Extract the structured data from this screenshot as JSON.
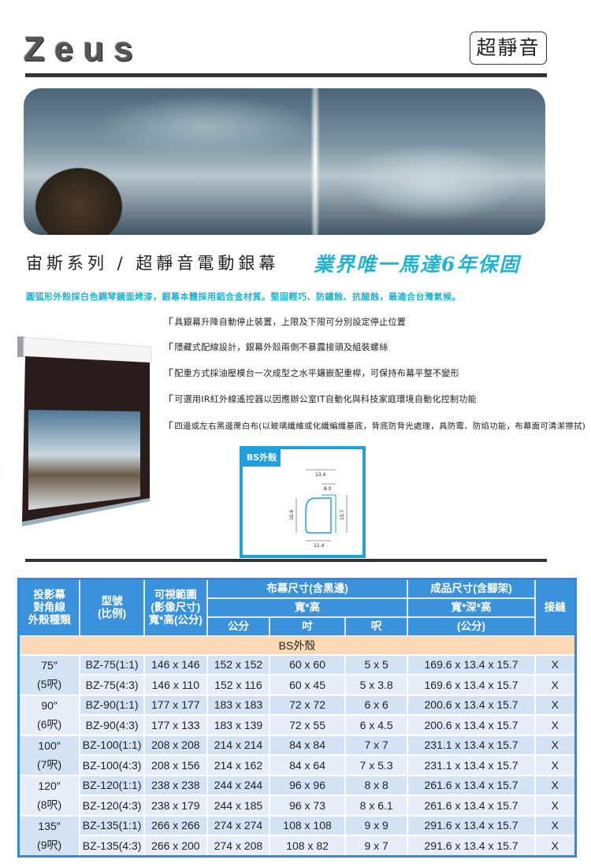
{
  "header": {
    "logo": "Zeus",
    "badge": "超靜音"
  },
  "title": {
    "series": "宙斯系列 / 超靜音電動銀幕",
    "warranty": "業界唯一馬達6年保固"
  },
  "description": "圓弧形外殼採白色鋼琴鏡面烤漆，銀幕本體採用鋁合金材質。堅固輕巧、防鏽蝕、抗酸蝕，最適合台灣氣候。",
  "features": [
    "具銀幕升降自動停止裝置，上限及下限可分別設定停止位置",
    "隱藏式配線設計，銀幕外殼兩側不暴露接頭及組裝螺絲",
    "配重方式採油壓模台一次成型之水平鑲嵌配重桿，可保持布幕平整不變形",
    "可選用IR紅外線遙控器以因應辦公室IT自動化與科技家庭環境自動化控制功能",
    "四邊或左右黑邊蓆白布(以玻璃纖維或化纖編織基底，背底防背光處理，具防霉、防焰功能，布幕面可清潔擦拭)"
  ],
  "diagram": {
    "label": "BS外殼",
    "dims": {
      "width_total": "13.4",
      "top": "8.0",
      "height_left": "10.6",
      "height_right": "15.7",
      "bottom": "11.4"
    }
  },
  "table": {
    "headers": {
      "diag": [
        "投影幕",
        "對角線",
        "外殼種類"
      ],
      "model": [
        "型號",
        "(比例)"
      ],
      "visible": [
        "可視範圍",
        "(影像尺寸)",
        "寬*高(公分)"
      ],
      "fabric": "布幕尺寸(含黑邊)",
      "fabric_sub": "寬*高",
      "fabric_units": [
        "公分",
        "吋",
        "呎"
      ],
      "product": "成品尺寸(含腳架)",
      "product_sub": "寬*深*高",
      "product_unit": "(公分)",
      "seam": "接縫"
    },
    "band": "BS外殼",
    "groups": [
      {
        "size": "75″",
        "feet": "(5呎)",
        "rows": [
          [
            "BZ-75(1:1)",
            "146 x 146",
            "152 x 152",
            "60 x 60",
            "5 x 5",
            "169.6 x 13.4 x 15.7",
            "X"
          ],
          [
            "BZ-75(4:3)",
            "146 x 110",
            "152 x 116",
            "60 x 45",
            "5 x 3.8",
            "169.6 x 13.4 x 15.7",
            "X"
          ]
        ]
      },
      {
        "size": "90″",
        "feet": "(6呎)",
        "rows": [
          [
            "BZ-90(1:1)",
            "177 x 177",
            "183 x 183",
            "72 x 72",
            "6 x 6",
            "200.6 x 13.4 x 15.7",
            "X"
          ],
          [
            "BZ-90(4:3)",
            "177 x 133",
            "183 x 139",
            "72 x 55",
            "6 x 4.5",
            "200.6 x 13.4 x 15.7",
            "X"
          ]
        ]
      },
      {
        "size": "100″",
        "feet": "(7呎)",
        "rows": [
          [
            "BZ-100(1:1)",
            "208 x 208",
            "214 x 214",
            "84 x 84",
            "7 x 7",
            "231.1 x 13.4 x 15.7",
            "X"
          ],
          [
            "BZ-100(4:3)",
            "208 x 156",
            "214 x 162",
            "84 x 64",
            "7 x 5.3",
            "231.1 x 13.4 x 15.7",
            "X"
          ]
        ]
      },
      {
        "size": "120″",
        "feet": "(8呎)",
        "rows": [
          [
            "BZ-120(1:1)",
            "238 x 238",
            "244 x 244",
            "96 x 96",
            "8 x 8",
            "261.6 x 13.4 x 15.7",
            "X"
          ],
          [
            "BZ-120(4:3)",
            "238 x 179",
            "244 x 185",
            "96 x 73",
            "8 x 6.1",
            "261.6 x 13.4 x 15.7",
            "X"
          ]
        ]
      },
      {
        "size": "135″",
        "feet": "(9呎)",
        "rows": [
          [
            "BZ-135(1:1)",
            "266 x 266",
            "274 x 274",
            "108 x 108",
            "9 x 9",
            "291.6 x 13.4 x 15.7",
            "X"
          ],
          [
            "BZ-135(4:3)",
            "266 x 200",
            "274 x 208",
            "108 x 82",
            "9 x 7",
            "291.6 x 13.4 x 15.7",
            "X"
          ]
        ]
      }
    ]
  },
  "colors": {
    "accent": "#1fb3cf",
    "table_header": "#3a92dc",
    "band": "#fbd9b4",
    "row_a": "#d3e2f5",
    "row_b": "#e6eefa"
  }
}
